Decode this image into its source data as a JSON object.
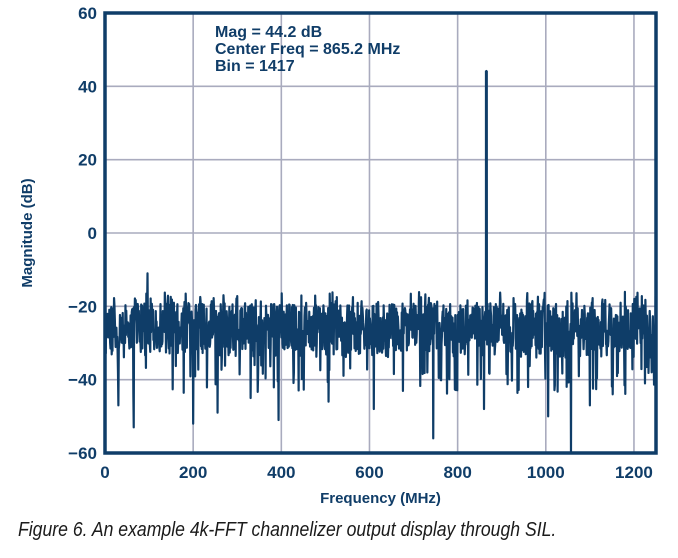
{
  "chart_data": {
    "type": "line",
    "title": "",
    "xlabel": "Frequency (MHz)",
    "ylabel": "Magnitude (dB)",
    "xlim": [
      0,
      1250
    ],
    "ylim": [
      -60,
      60
    ],
    "xticks": [
      0,
      200,
      400,
      600,
      800,
      1000,
      1200
    ],
    "xtick_labels": [
      "0",
      "200",
      "400",
      "600",
      "800",
      "1000",
      "1200"
    ],
    "yticks": [
      60,
      40,
      20,
      0,
      -20,
      -40,
      -60
    ],
    "ytick_labels": [
      "60",
      "40",
      "20",
      "0",
      "−20",
      "−40",
      "−60"
    ],
    "grid": true,
    "annotations": [
      "Mag = 44.2 dB",
      "Center Freq = 865.2 MHz",
      "Bin = 1417"
    ],
    "series": [
      {
        "name": "4k-FFT channelizer output",
        "color": "#0f3d68",
        "description": "noise floor approx -20 to -35 dB with single tone",
        "noise_floor_upper_db": -19,
        "noise_floor_lower_db": -34,
        "peak": {
          "x": 865.2,
          "y": 44.2
        },
        "notable_points": [
          {
            "x": 0,
            "y": -10
          },
          {
            "x": 96,
            "y": -11
          },
          {
            "x": 65,
            "y": -53
          },
          {
            "x": 200,
            "y": -52
          },
          {
            "x": 255,
            "y": -49
          },
          {
            "x": 394,
            "y": -51
          },
          {
            "x": 507,
            "y": -46
          },
          {
            "x": 610,
            "y": -48
          },
          {
            "x": 745,
            "y": -56
          },
          {
            "x": 860,
            "y": -48
          },
          {
            "x": 1005,
            "y": -50
          },
          {
            "x": 1057,
            "y": -60
          },
          {
            "x": 1100,
            "y": -47
          },
          {
            "x": 30,
            "y": -47
          },
          {
            "x": 330,
            "y": -45
          },
          {
            "x": 960,
            "y": -42
          },
          {
            "x": 1240,
            "y": -38
          }
        ]
      }
    ]
  },
  "caption": "Figure 6. An example 4k-FFT channelizer output display through SIL."
}
